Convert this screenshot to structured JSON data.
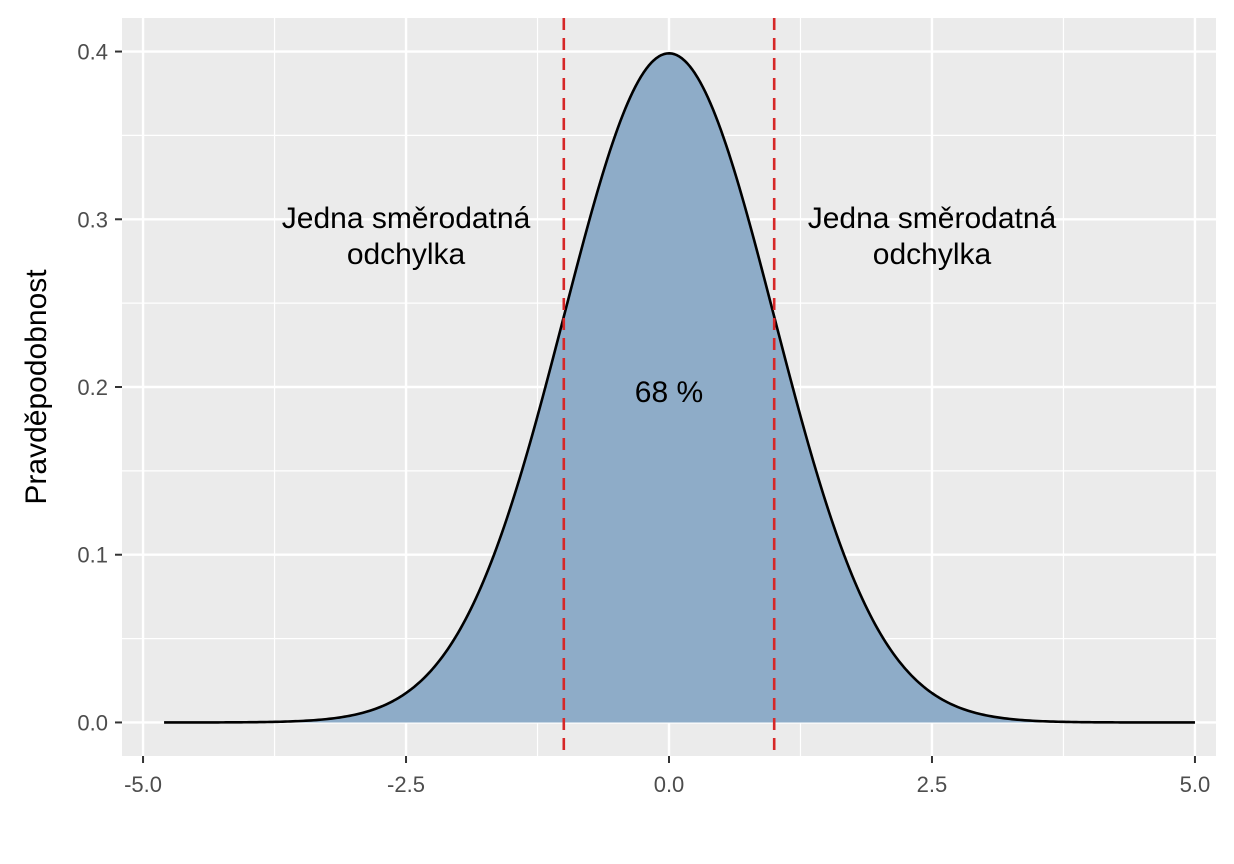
{
  "chart_data": {
    "type": "area",
    "title": "",
    "xlabel": "",
    "ylabel": "Pravděpodobnost",
    "xlim": [
      -5.2,
      5.2
    ],
    "ylim": [
      -0.02,
      0.42
    ],
    "x_ticks": [
      -5.0,
      -2.5,
      0.0,
      2.5,
      5.0
    ],
    "x_tick_labels": [
      "-5.0",
      "-2.5",
      "0.0",
      "2.5",
      "5.0"
    ],
    "y_ticks": [
      0.0,
      0.1,
      0.2,
      0.3,
      0.4
    ],
    "y_tick_labels": [
      "0.0",
      "0.1",
      "0.2",
      "0.3",
      "0.4"
    ],
    "grid": true,
    "series": [
      {
        "distribution": "normal",
        "mean": 0,
        "sd": 1,
        "x_range": [
          -4.8,
          5.0
        ],
        "fill_color": "#8eacc8",
        "line_color": "#000000"
      }
    ],
    "reference_lines": [
      {
        "x": -1,
        "color": "#d62728",
        "style": "dashed"
      },
      {
        "x": 1,
        "color": "#d62728",
        "style": "dashed"
      }
    ],
    "annotations": [
      {
        "text_lines": [
          "Jedna směrodatná",
          "odchylka"
        ],
        "x": -2.5,
        "y": 0.29
      },
      {
        "text_lines": [
          "Jedna směrodatná",
          "odchylka"
        ],
        "x": 2.5,
        "y": 0.29
      },
      {
        "text_lines": [
          "68 %"
        ],
        "x": 0,
        "y": 0.197
      }
    ],
    "panel_color": "#ebebeb",
    "grid_color": "#ffffff"
  }
}
